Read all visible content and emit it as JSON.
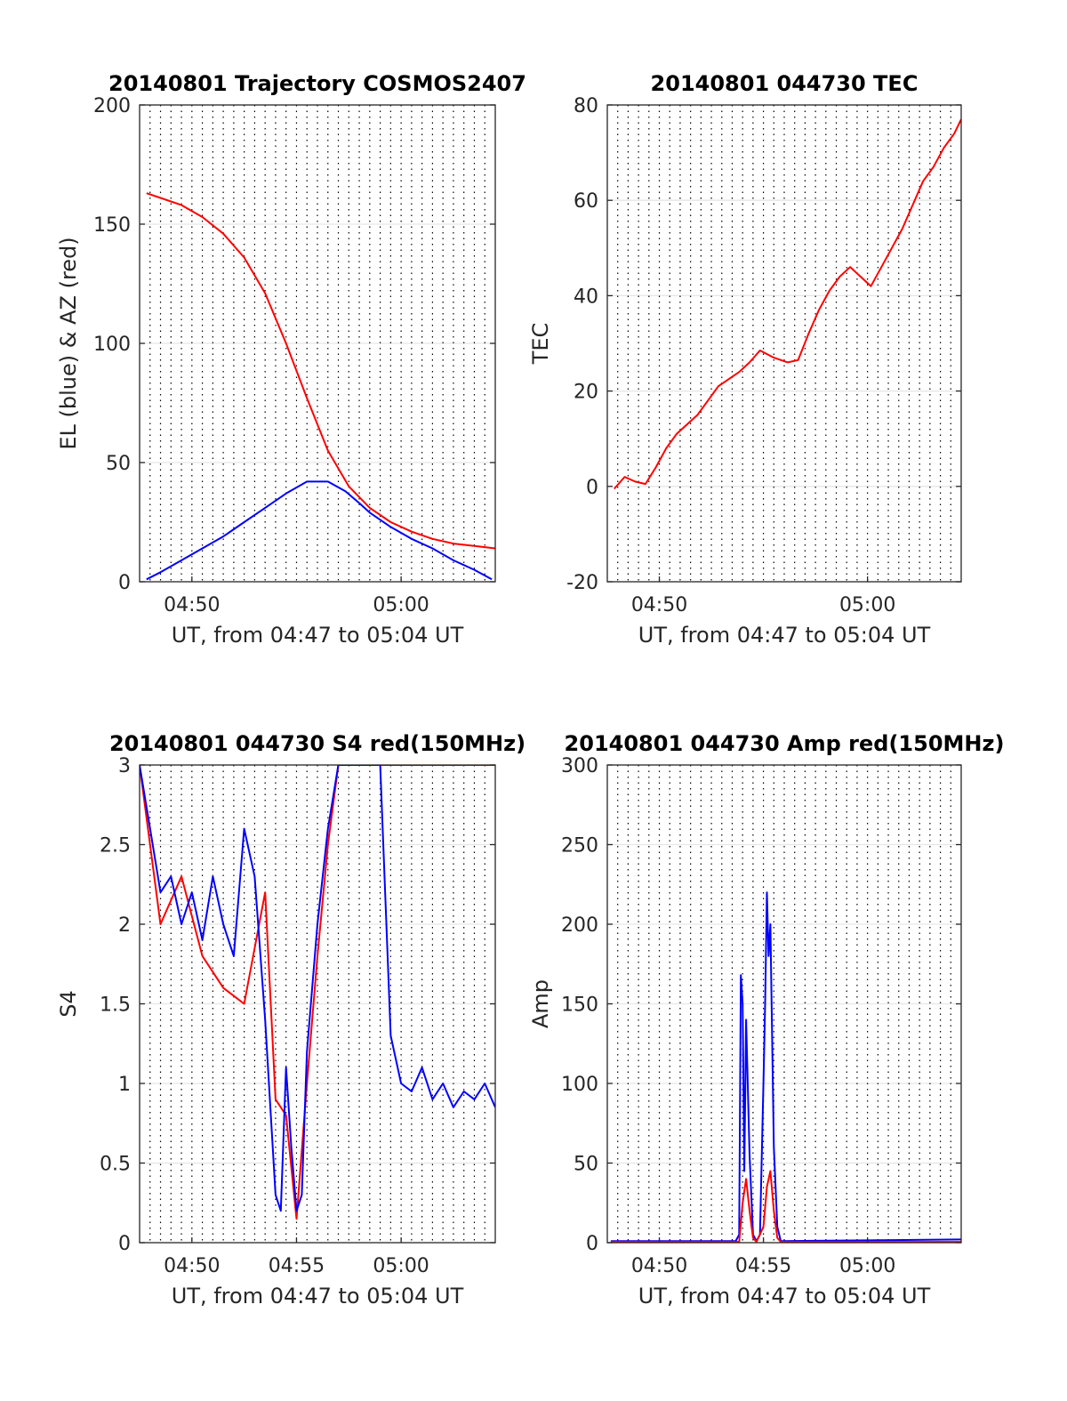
{
  "chart_data": [
    {
      "type": "line",
      "title": "20140801 Trajectory COSMOS2407",
      "xlabel": "UT, from 04:47 to 05:04 UT",
      "ylabel": "EL (blue) & AZ (red)",
      "x_tick_labels": [
        "04:50",
        "05:00"
      ],
      "xlim": [
        "04:47:30",
        "05:04:30"
      ],
      "ylim": [
        0,
        200
      ],
      "y_ticks": [
        0,
        50,
        100,
        150,
        200
      ],
      "grid": "dotted vertical every 30 s, light horizontal",
      "colors": {
        "el": "#0000ff",
        "az": "#ff0000"
      },
      "series": [
        {
          "color": "#0000ff",
          "x": [
            "04:47:50",
            "04:48:30",
            "04:49:30",
            "04:50:30",
            "04:51:30",
            "04:52:30",
            "04:53:30",
            "04:54:30",
            "04:55:30",
            "04:56:30",
            "04:57:20",
            "04:58:00",
            "04:58:30",
            "04:59:30",
            "05:00:30",
            "05:01:30",
            "05:02:30",
            "05:03:30",
            "05:04:20"
          ],
          "values": [
            1,
            4,
            9,
            14,
            19,
            25,
            31,
            37,
            42,
            42,
            38,
            33,
            29,
            23,
            18,
            14,
            9,
            5,
            1
          ]
        },
        {
          "color": "#ff0000",
          "x": [
            "04:47:50",
            "04:48:30",
            "04:49:30",
            "04:50:30",
            "04:51:30",
            "04:52:30",
            "04:53:30",
            "04:54:30",
            "04:55:30",
            "04:56:30",
            "04:57:30",
            "04:58:30",
            "04:59:30",
            "05:00:30",
            "05:01:30",
            "05:02:30",
            "05:03:30",
            "05:04:30"
          ],
          "values": [
            163,
            161,
            158,
            153,
            146,
            136,
            121,
            100,
            77,
            55,
            40,
            31,
            25,
            21,
            18,
            16,
            15,
            14
          ]
        }
      ]
    },
    {
      "type": "line",
      "title": "20140801 044730 TEC",
      "xlabel": "UT, from 04:47 to 05:04 UT",
      "ylabel": "TEC",
      "x_tick_labels": [
        "04:50",
        "05:00"
      ],
      "xlim": [
        "04:47:30",
        "05:04:30"
      ],
      "ylim": [
        -20,
        80
      ],
      "y_ticks": [
        -20,
        0,
        20,
        40,
        60,
        80
      ],
      "grid": "dotted vertical every 30 s, light horizontal",
      "series": [
        {
          "color": "#ff0000",
          "x": [
            "04:47:50",
            "04:48:20",
            "04:48:50",
            "04:49:20",
            "04:49:50",
            "04:50:20",
            "04:50:50",
            "04:51:20",
            "04:51:50",
            "04:52:20",
            "04:52:50",
            "04:53:20",
            "04:53:50",
            "04:54:20",
            "04:54:50",
            "04:55:30",
            "04:56:10",
            "04:56:40",
            "04:57:10",
            "04:57:40",
            "04:58:10",
            "04:58:40",
            "04:59:10",
            "04:59:40",
            "05:00:10",
            "05:00:40",
            "05:01:10",
            "05:01:40",
            "05:02:10",
            "05:02:40",
            "05:03:10",
            "05:03:40",
            "05:04:10",
            "05:04:30"
          ],
          "values": [
            -0.5,
            2,
            1,
            0.5,
            4,
            8,
            11,
            13,
            15,
            18,
            21,
            22.5,
            24,
            26,
            28.5,
            27,
            26,
            26.5,
            32,
            37,
            41,
            44,
            46,
            44,
            42,
            46,
            50,
            54,
            59,
            64,
            67,
            71,
            74,
            77
          ]
        }
      ]
    },
    {
      "type": "line",
      "title": "20140801 044730 S4 red(150MHz)",
      "xlabel": "UT, from 04:47 to 05:04 UT",
      "ylabel": "S4",
      "x_tick_labels": [
        "04:50",
        "04:55",
        "05:00"
      ],
      "xlim": [
        "04:47:30",
        "05:04:30"
      ],
      "ylim": [
        0,
        3
      ],
      "y_ticks": [
        0,
        0.5,
        1,
        1.5,
        2,
        2.5,
        3
      ],
      "grid": "dotted vertical every 30 s, light horizontal",
      "series": [
        {
          "color": "#ff0000",
          "x": [
            "04:47:30",
            "04:48:30",
            "04:49:30",
            "04:50:30",
            "04:51:30",
            "04:52:30",
            "04:53:30",
            "04:54:00",
            "04:54:30",
            "04:55:00",
            "04:55:30",
            "04:56:00",
            "04:56:30",
            "04:57:00",
            "04:58:00",
            "04:59:00",
            "05:00:00",
            "05:01:00",
            "05:02:00",
            "05:03:00",
            "05:04:30"
          ],
          "values": [
            3,
            2,
            2.3,
            1.8,
            1.6,
            1.5,
            2.2,
            0.9,
            0.8,
            0.15,
            1.0,
            1.8,
            2.5,
            3,
            3,
            3,
            3,
            3,
            3,
            3,
            3
          ]
        },
        {
          "color": "#0000ff",
          "x": [
            "04:47:30",
            "04:48:00",
            "04:48:30",
            "04:49:00",
            "04:49:30",
            "04:50:00",
            "04:50:30",
            "04:51:00",
            "04:51:30",
            "04:52:00",
            "04:52:30",
            "04:53:00",
            "04:53:30",
            "04:54:00",
            "04:54:15",
            "04:54:30",
            "04:54:45",
            "04:55:00",
            "04:55:15",
            "04:55:30",
            "04:55:45",
            "04:56:00",
            "04:56:30",
            "04:57:00",
            "04:58:00",
            "04:59:00",
            "04:59:30",
            "05:00:00",
            "05:00:30",
            "05:01:00",
            "05:01:30",
            "05:02:00",
            "05:02:30",
            "05:03:00",
            "05:03:30",
            "05:04:00",
            "05:04:30"
          ],
          "values": [
            3,
            2.6,
            2.2,
            2.3,
            2.0,
            2.2,
            1.9,
            2.3,
            2.0,
            1.8,
            2.6,
            2.3,
            1.4,
            0.3,
            0.2,
            1.1,
            0.6,
            0.2,
            0.3,
            1.2,
            1.6,
            2.0,
            2.6,
            3,
            3,
            3,
            1.3,
            1.0,
            0.95,
            1.1,
            0.9,
            1.0,
            0.85,
            0.95,
            0.9,
            1.0,
            0.85
          ]
        }
      ]
    },
    {
      "type": "line",
      "title": "20140801 044730 Amp red(150MHz)",
      "xlabel": "UT, from 04:47 to 05:04 UT",
      "ylabel": "Amp",
      "x_tick_labels": [
        "04:50",
        "04:55",
        "05:00"
      ],
      "xlim": [
        "04:47:30",
        "05:04:30"
      ],
      "ylim": [
        0,
        300
      ],
      "y_ticks": [
        0,
        50,
        100,
        150,
        200,
        250,
        300
      ],
      "grid": "dotted vertical every 30 s, light horizontal",
      "series": [
        {
          "color": "#0000ff",
          "x": [
            "04:47:40",
            "04:53:40",
            "04:53:50",
            "04:53:55",
            "04:54:00",
            "04:54:05",
            "04:54:10",
            "04:54:20",
            "04:54:30",
            "04:54:40",
            "04:54:50",
            "04:55:00",
            "04:55:05",
            "04:55:10",
            "04:55:15",
            "04:55:20",
            "04:55:30",
            "04:55:40",
            "04:55:50",
            "05:04:30"
          ],
          "values": [
            1,
            1,
            5,
            168,
            150,
            45,
            140,
            55,
            5,
            1,
            5,
            100,
            150,
            220,
            180,
            200,
            60,
            10,
            1,
            2
          ]
        },
        {
          "color": "#ff0000",
          "x": [
            "04:47:40",
            "04:53:50",
            "04:54:00",
            "04:54:10",
            "04:54:20",
            "04:54:30",
            "04:54:40",
            "04:55:00",
            "04:55:10",
            "04:55:20",
            "04:55:30",
            "04:55:40",
            "04:55:50",
            "05:04:30"
          ],
          "values": [
            0.5,
            0.5,
            25,
            40,
            20,
            3,
            0.5,
            10,
            35,
            45,
            20,
            3,
            0.5,
            0.5
          ]
        }
      ]
    }
  ]
}
